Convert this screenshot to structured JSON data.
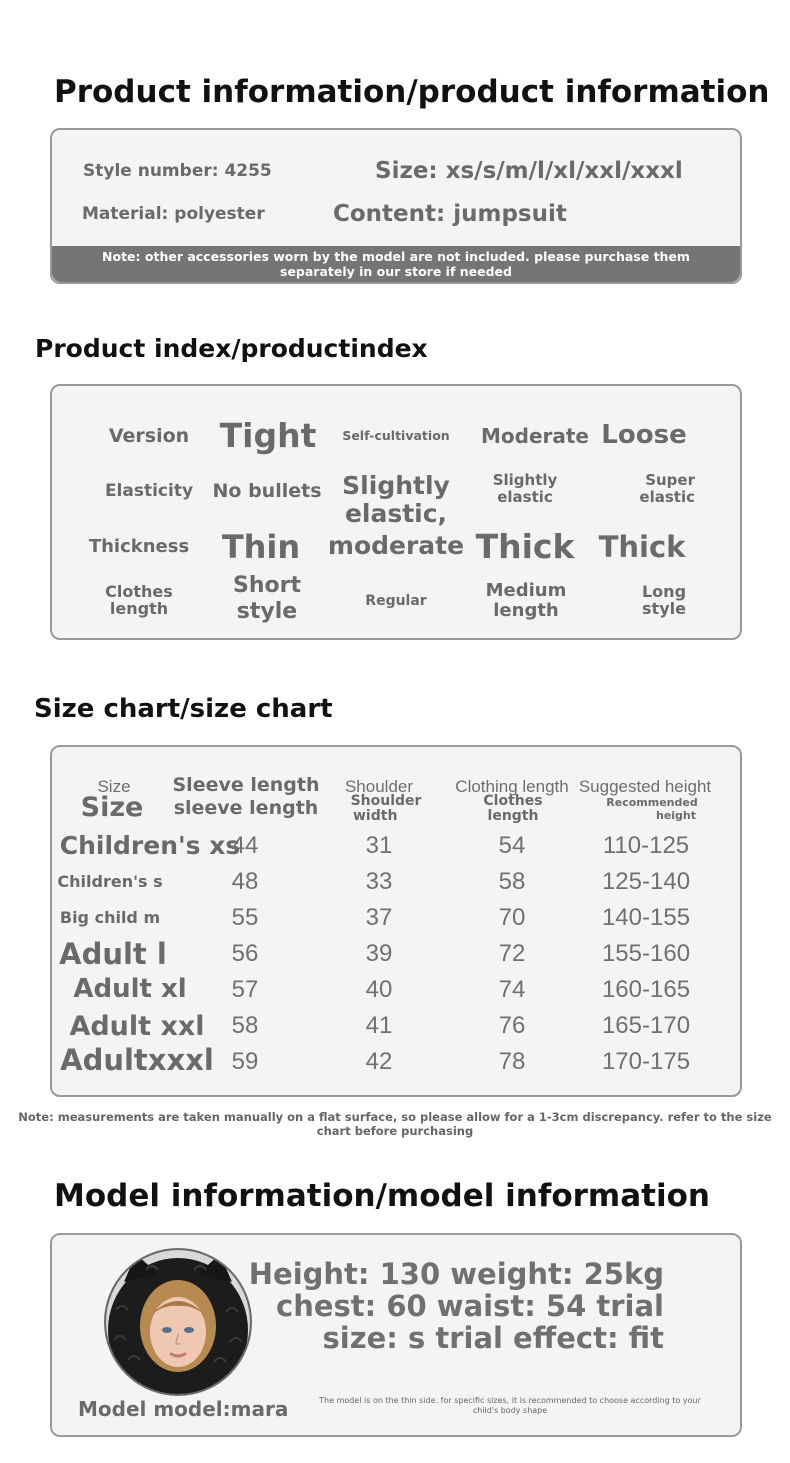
{
  "product_info": {
    "heading": "Product information/product information",
    "style_number": "Style number: 4255",
    "size": "Size: xs/s/m/l/xl/xxl/xxxl",
    "material": "Material: polyester",
    "content": "Content: jumpsuit",
    "note_line1": "Note: other accessories worn by the model are not included. please purchase them",
    "note_line2": "separately in our store if needed"
  },
  "product_index": {
    "heading": "Product index/productindex",
    "rows": [
      {
        "label": "Version",
        "options": [
          "Tight",
          "Self-cultivation",
          "Moderate",
          "Loose"
        ]
      },
      {
        "label": "Elasticity",
        "options": [
          "No bullets",
          "Slightly elastic,",
          "Slightly elastic",
          "Super elastic"
        ]
      },
      {
        "label": "Thickness",
        "options": [
          "Thin",
          "moderate",
          "Thick",
          "Thick"
        ]
      },
      {
        "label": "Clothes length",
        "options": [
          "Short style",
          "Regular",
          "Medium length",
          "Long style"
        ]
      }
    ]
  },
  "size_chart": {
    "heading": "Size chart/size chart",
    "headers": {
      "size_light": "Size",
      "size_bold": "Size",
      "sleeve_1": "Sleeve length",
      "sleeve_2": "sleeve length",
      "shoulder_light": "Shoulder",
      "shoulder_bold_1": "Shoulder",
      "shoulder_bold_2": "width",
      "clothing_light": "Clothing length",
      "clothing_bold_1": "Clothes",
      "clothing_bold_2": "length",
      "height_light": "Suggested height",
      "height_bold_1": "Recommended",
      "height_bold_2": "height"
    },
    "rows": [
      {
        "size": "Children's xs",
        "sleeve": "44",
        "shoulder": "31",
        "length": "54",
        "height": "110-125"
      },
      {
        "size": "Children's s",
        "sleeve": "48",
        "shoulder": "33",
        "length": "58",
        "height": "125-140"
      },
      {
        "size": "Big child m",
        "sleeve": "55",
        "shoulder": "37",
        "length": "70",
        "height": "140-155"
      },
      {
        "size": "Adult l",
        "sleeve": "56",
        "shoulder": "39",
        "length": "72",
        "height": "155-160"
      },
      {
        "size": "Adult xl",
        "sleeve": "57",
        "shoulder": "40",
        "length": "74",
        "height": "160-165"
      },
      {
        "size": "Adult xxl",
        "sleeve": "58",
        "shoulder": "41",
        "length": "76",
        "height": "165-170"
      },
      {
        "size": "Adultxxxl",
        "sleeve": "59",
        "shoulder": "42",
        "length": "78",
        "height": "170-175"
      }
    ],
    "note_line1": "Note: measurements are taken manually on a flat surface, so please allow for a 1-3cm discrepancy. refer to the size",
    "note_line2": "chart before purchasing"
  },
  "model_info": {
    "heading": "Model information/model information",
    "line1": "Height: 130 weight: 25kg",
    "line2": "chest: 60 waist: 54 trial",
    "line3": "size: s trial effect: fit",
    "model_name": "Model model:mara",
    "small_note_1": "The model is on the thin side. for specific sizes, it is recommended to choose according to your",
    "small_note_2": "child's body shape"
  },
  "colors": {
    "card_bg": "#f4f4f4",
    "card_border": "#9a9a9a",
    "note_bar": "#757575",
    "heading_text": "#111111",
    "body_text": "#6a6a6a"
  }
}
